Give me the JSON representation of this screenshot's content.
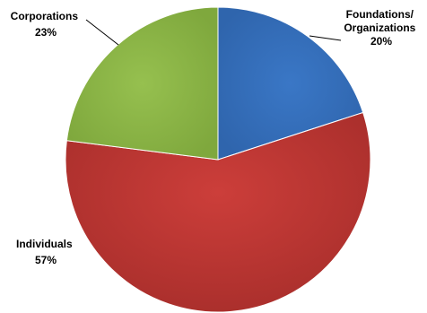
{
  "chart_data": {
    "type": "pie",
    "title": "",
    "start": "12 o'clock, clockwise",
    "legend": "none",
    "slices": [
      {
        "label_lines": [
          "Foundations/",
          "Organizations"
        ],
        "value": 20,
        "pct_text": "20%",
        "color": "#3A77C6"
      },
      {
        "label_lines": [
          "Individuals"
        ],
        "value": 57,
        "pct_text": "57%",
        "color": "#C83A36"
      },
      {
        "label_lines": [
          "Corporations"
        ],
        "value": 23,
        "pct_text": "23%",
        "color": "#93BE4A"
      }
    ]
  }
}
